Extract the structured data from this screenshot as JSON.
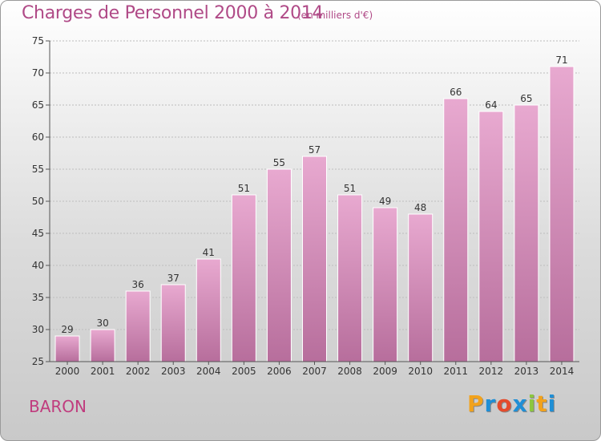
{
  "title": "Charges de Personnel 2000 à 2014",
  "subtitle": "(en milliers d'€)",
  "town": "BARON",
  "logo": {
    "text": "Proxiti",
    "letters": [
      "P",
      "r",
      "o",
      "x",
      "i",
      "t",
      "i"
    ],
    "colors": [
      "#f2a21b",
      "#1f8fd6",
      "#e54b2b",
      "#1f8fd6",
      "#8cc63f",
      "#f2a21b",
      "#1f8fd6"
    ]
  },
  "colors": {
    "bar_top": "#e8a9d0",
    "bar_bottom": "#b76e9c",
    "title": "#b04a87"
  },
  "chart_data": {
    "type": "bar",
    "categories": [
      "2000",
      "2001",
      "2002",
      "2003",
      "2004",
      "2005",
      "2006",
      "2007",
      "2008",
      "2009",
      "2010",
      "2011",
      "2012",
      "2013",
      "2014"
    ],
    "values": [
      29,
      30,
      36,
      37,
      41,
      51,
      55,
      57,
      51,
      49,
      48,
      66,
      64,
      65,
      71
    ],
    "ylim": [
      25,
      75
    ],
    "yticks": [
      25,
      30,
      35,
      40,
      45,
      50,
      55,
      60,
      65,
      70,
      75
    ],
    "grid": true
  }
}
